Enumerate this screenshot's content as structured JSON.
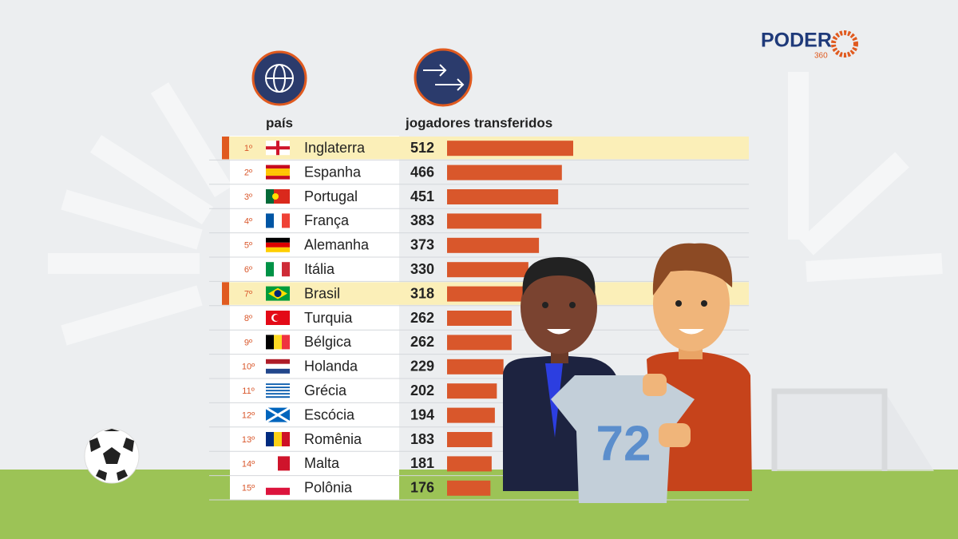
{
  "logo": {
    "name": "PODER",
    "sub": "360"
  },
  "jersey_number": "72",
  "chart_data": {
    "type": "bar",
    "orientation": "horizontal",
    "category_header": "país",
    "value_header": "jogadores transferidos",
    "rank_labels": [
      "1º",
      "2º",
      "3º",
      "4º",
      "5º",
      "6º",
      "7º",
      "8º",
      "9º",
      "10º",
      "11º",
      "12º",
      "13º",
      "14º",
      "15º"
    ],
    "categories": [
      "Inglaterra",
      "Espanha",
      "Portugal",
      "França",
      "Alemanha",
      "Itália",
      "Brasil",
      "Turquia",
      "Bélgica",
      "Holanda",
      "Grécia",
      "Escócia",
      "Romênia",
      "Malta",
      "Polônia"
    ],
    "values": [
      512,
      466,
      451,
      383,
      373,
      330,
      318,
      262,
      262,
      229,
      202,
      194,
      183,
      181,
      176
    ],
    "color": "#d9572b",
    "highlight": [
      0,
      6
    ]
  }
}
